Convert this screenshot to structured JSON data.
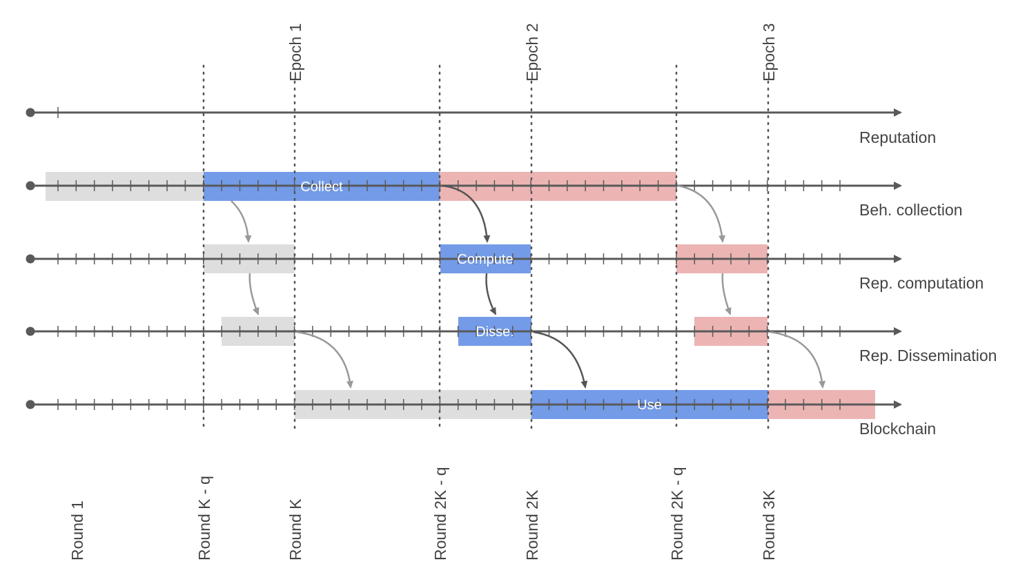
{
  "colors": {
    "axis": "#595959",
    "gray_box": "#dedede",
    "blue_box": "#739be8",
    "red_box": "#edb4b4",
    "dotted": "#555555",
    "dark_arrow": "#555555",
    "light_arrow": "#999999",
    "text": "#444444"
  },
  "epochs": [
    "Epoch 1",
    "Epoch 2",
    "Epoch 3"
  ],
  "rounds": [
    "Round 1",
    "Round K - q",
    "Round K",
    "Round 2K - q",
    "Round 2K",
    "Round 2K - q",
    "Round 3K"
  ],
  "lanes": [
    "Reputation",
    "Beh. collection",
    "Rep. computation",
    "Rep. Dissemination",
    "Blockchain"
  ],
  "boxes": {
    "collect": "Collect",
    "compute": "Compute",
    "disse": "Disse.",
    "use": "Use"
  }
}
